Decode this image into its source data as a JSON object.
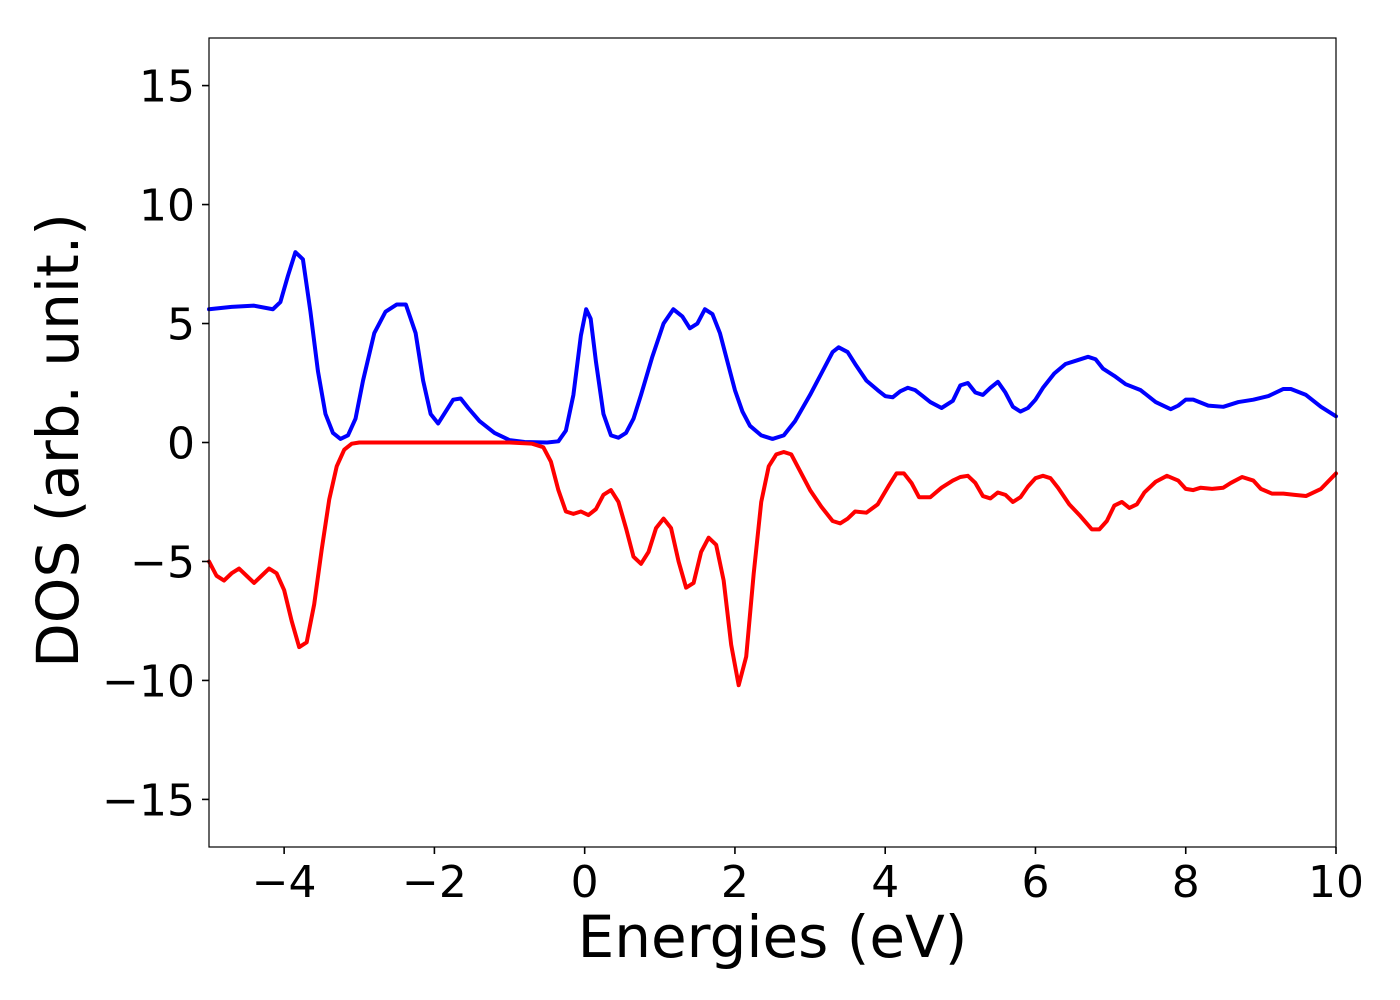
{
  "chart_data": {
    "type": "line",
    "title": "",
    "xlabel": "Energies (eV)",
    "ylabel": "DOS (arb. unit.)",
    "xlim": [
      -5,
      10
    ],
    "ylim": [
      -17,
      17
    ],
    "grid": false,
    "legend": "none",
    "x_ticks": [
      -4,
      -2,
      0,
      2,
      4,
      6,
      8,
      10
    ],
    "x_tick_labels": [
      "−4",
      "−2",
      "0",
      "2",
      "4",
      "6",
      "8",
      "10"
    ],
    "y_ticks": [
      15,
      10,
      5,
      0,
      -5,
      -10,
      -15
    ],
    "y_tick_labels": [
      "15",
      "10",
      "5",
      "0",
      "−5",
      "−10",
      "−15"
    ],
    "series": [
      {
        "color": "#0000ff",
        "x": [
          -5.0,
          -4.7,
          -4.4,
          -4.15,
          -4.05,
          -3.95,
          -3.85,
          -3.75,
          -3.65,
          -3.55,
          -3.45,
          -3.35,
          -3.25,
          -3.15,
          -3.05,
          -2.95,
          -2.8,
          -2.65,
          -2.5,
          -2.38,
          -2.25,
          -2.15,
          -2.05,
          -1.95,
          -1.85,
          -1.75,
          -1.65,
          -1.55,
          -1.4,
          -1.2,
          -1.0,
          -0.8,
          -0.5,
          -0.35,
          -0.25,
          -0.15,
          -0.05,
          0.02,
          0.08,
          0.15,
          0.25,
          0.35,
          0.45,
          0.55,
          0.65,
          0.75,
          0.9,
          1.05,
          1.18,
          1.3,
          1.4,
          1.5,
          1.6,
          1.7,
          1.8,
          1.9,
          2.0,
          2.1,
          2.2,
          2.35,
          2.5,
          2.65,
          2.8,
          3.0,
          3.15,
          3.3,
          3.38,
          3.5,
          3.6,
          3.75,
          3.9,
          4.0,
          4.1,
          4.2,
          4.3,
          4.4,
          4.5,
          4.6,
          4.75,
          4.9,
          5.0,
          5.1,
          5.2,
          5.3,
          5.4,
          5.5,
          5.6,
          5.7,
          5.8,
          5.9,
          6.0,
          6.1,
          6.25,
          6.4,
          6.55,
          6.7,
          6.8,
          6.9,
          7.05,
          7.2,
          7.4,
          7.6,
          7.8,
          7.9,
          8.0,
          8.1,
          8.3,
          8.5,
          8.7,
          8.9,
          9.1,
          9.3,
          9.4,
          9.6,
          9.8,
          10.0
        ],
        "y": [
          5.6,
          5.7,
          5.75,
          5.6,
          5.9,
          7.0,
          8.0,
          7.7,
          5.5,
          3.0,
          1.2,
          0.4,
          0.15,
          0.3,
          1.0,
          2.6,
          4.6,
          5.5,
          5.8,
          5.8,
          4.6,
          2.6,
          1.2,
          0.8,
          1.3,
          1.8,
          1.85,
          1.45,
          0.9,
          0.4,
          0.1,
          0.02,
          0.0,
          0.05,
          0.5,
          2.0,
          4.5,
          5.6,
          5.2,
          3.4,
          1.2,
          0.3,
          0.2,
          0.4,
          1.0,
          2.0,
          3.6,
          5.0,
          5.6,
          5.3,
          4.8,
          5.0,
          5.6,
          5.4,
          4.6,
          3.4,
          2.2,
          1.3,
          0.7,
          0.3,
          0.15,
          0.3,
          0.9,
          2.0,
          2.9,
          3.8,
          4.0,
          3.8,
          3.3,
          2.6,
          2.2,
          1.95,
          1.9,
          2.15,
          2.3,
          2.2,
          1.95,
          1.7,
          1.45,
          1.75,
          2.4,
          2.5,
          2.1,
          2.0,
          2.3,
          2.55,
          2.1,
          1.5,
          1.3,
          1.45,
          1.8,
          2.3,
          2.9,
          3.3,
          3.45,
          3.6,
          3.5,
          3.1,
          2.8,
          2.45,
          2.2,
          1.7,
          1.4,
          1.55,
          1.8,
          1.8,
          1.55,
          1.5,
          1.7,
          1.8,
          1.95,
          2.25,
          2.25,
          2.0,
          1.5,
          1.1
        ]
      },
      {
        "color": "#ff0000",
        "x": [
          -5.0,
          -4.9,
          -4.8,
          -4.7,
          -4.6,
          -4.5,
          -4.4,
          -4.3,
          -4.2,
          -4.1,
          -4.0,
          -3.9,
          -3.8,
          -3.7,
          -3.6,
          -3.5,
          -3.4,
          -3.3,
          -3.2,
          -3.1,
          -3.0,
          -2.9,
          -2.5,
          -2.0,
          -1.5,
          -1.0,
          -0.7,
          -0.55,
          -0.45,
          -0.35,
          -0.25,
          -0.15,
          -0.05,
          0.05,
          0.15,
          0.25,
          0.35,
          0.45,
          0.55,
          0.65,
          0.75,
          0.85,
          0.95,
          1.05,
          1.15,
          1.25,
          1.35,
          1.45,
          1.55,
          1.65,
          1.75,
          1.85,
          1.95,
          2.05,
          2.15,
          2.25,
          2.35,
          2.45,
          2.55,
          2.65,
          2.75,
          2.85,
          3.0,
          3.15,
          3.3,
          3.4,
          3.5,
          3.6,
          3.75,
          3.9,
          4.05,
          4.15,
          4.25,
          4.35,
          4.45,
          4.6,
          4.75,
          4.9,
          5.0,
          5.1,
          5.2,
          5.3,
          5.4,
          5.5,
          5.6,
          5.7,
          5.8,
          5.9,
          6.0,
          6.1,
          6.2,
          6.3,
          6.45,
          6.6,
          6.75,
          6.85,
          6.95,
          7.05,
          7.15,
          7.25,
          7.35,
          7.45,
          7.6,
          7.75,
          7.9,
          8.0,
          8.1,
          8.2,
          8.35,
          8.5,
          8.6,
          8.75,
          8.9,
          9.0,
          9.15,
          9.3,
          9.45,
          9.6,
          9.8,
          10.0
        ],
        "y": [
          -5.0,
          -5.6,
          -5.8,
          -5.5,
          -5.3,
          -5.6,
          -5.9,
          -5.6,
          -5.3,
          -5.5,
          -6.2,
          -7.5,
          -8.6,
          -8.4,
          -6.8,
          -4.5,
          -2.4,
          -1.0,
          -0.3,
          -0.05,
          0.0,
          0.0,
          0.0,
          0.0,
          0.0,
          0.0,
          -0.05,
          -0.2,
          -0.8,
          -2.0,
          -2.9,
          -3.0,
          -2.9,
          -3.05,
          -2.8,
          -2.2,
          -2.0,
          -2.5,
          -3.6,
          -4.8,
          -5.1,
          -4.6,
          -3.6,
          -3.2,
          -3.6,
          -5.0,
          -6.1,
          -5.9,
          -4.6,
          -4.0,
          -4.3,
          -5.8,
          -8.5,
          -10.2,
          -9.0,
          -5.5,
          -2.5,
          -1.0,
          -0.5,
          -0.4,
          -0.5,
          -1.1,
          -2.0,
          -2.7,
          -3.3,
          -3.4,
          -3.2,
          -2.9,
          -2.95,
          -2.6,
          -1.8,
          -1.3,
          -1.3,
          -1.7,
          -2.3,
          -2.3,
          -1.9,
          -1.6,
          -1.45,
          -1.4,
          -1.7,
          -2.25,
          -2.35,
          -2.1,
          -2.2,
          -2.5,
          -2.3,
          -1.85,
          -1.5,
          -1.4,
          -1.5,
          -1.9,
          -2.6,
          -3.1,
          -3.65,
          -3.65,
          -3.3,
          -2.65,
          -2.5,
          -2.75,
          -2.6,
          -2.1,
          -1.65,
          -1.4,
          -1.6,
          -1.95,
          -2.0,
          -1.9,
          -1.95,
          -1.9,
          -1.7,
          -1.45,
          -1.6,
          -1.95,
          -2.15,
          -2.15,
          -2.2,
          -2.25,
          -1.95,
          -1.3
        ]
      }
    ]
  }
}
